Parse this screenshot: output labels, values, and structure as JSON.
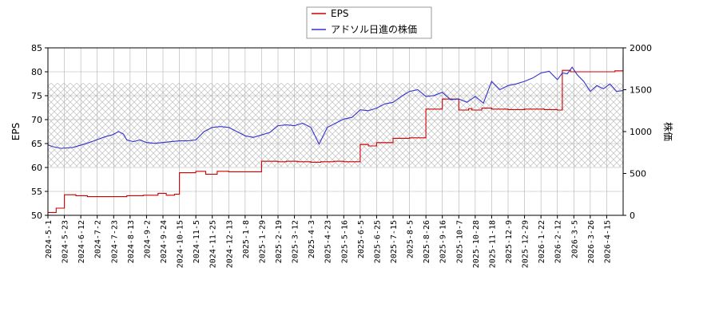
{
  "chart_data": {
    "type": "line",
    "title": "",
    "ylabel_left": "EPS",
    "ylabel_right": "株価",
    "ylim_left": [
      50,
      85
    ],
    "yticks_left": [
      50,
      55,
      60,
      65,
      70,
      75,
      80,
      85
    ],
    "ylim_right": [
      0,
      2000
    ],
    "yticks_right": [
      0,
      500,
      1000,
      1500,
      2000
    ],
    "grid": true,
    "legend_position": "top-center",
    "colors": {
      "eps": "#cc0000",
      "price": "#3333cc",
      "grid": "#b0b0b0",
      "hatch": "#c8c8c8"
    },
    "xtick_labels": [
      "2024-5-1",
      "2024-5-23",
      "2024-6-12",
      "2024-7-2",
      "2024-7-23",
      "2024-8-13",
      "2024-9-2",
      "2024-9-24",
      "2024-10-15",
      "2024-11-5",
      "2024-11-25",
      "2024-12-13",
      "2025-1-8",
      "2025-1-29",
      "2025-2-19",
      "2025-3-12",
      "2025-4-3",
      "2025-4-23",
      "2025-5-16",
      "2025-6-5",
      "2025-6-25",
      "2025-7-15",
      "2025-8-5",
      "2025-8-26",
      "2025-9-16",
      "2025-10-7",
      "2025-10-28",
      "2025-11-18",
      "2025-12-9",
      "2025-12-29",
      "2026-1-22",
      "2026-2-12",
      "2026-3-5",
      "2026-3-26",
      "2026-4-15"
    ],
    "shaded_band_price": [
      580,
      1580
    ],
    "series": [
      {
        "name": "EPS",
        "axis": "left",
        "step": true,
        "x": [
          0,
          0.5,
          1,
          1.7,
          2.4,
          4.8,
          5.8,
          6.7,
          7.2,
          7.7,
          8.0,
          9.0,
          9.6,
          10.3,
          11.0,
          13.0,
          14.0,
          14.5,
          15.2,
          16.0,
          16.6,
          17.4,
          18.0,
          18.1,
          18.3,
          19.0,
          19.5,
          20.0,
          21.0,
          22.0,
          23.0,
          24.0,
          25.0,
          25.6,
          25.8,
          26.4,
          27.0,
          28.0,
          29.0,
          30.2,
          31.0,
          31.3,
          31.8,
          34.5,
          35.0
        ],
        "y": [
          50.6,
          51.5,
          54.3,
          54.1,
          53.9,
          54.1,
          54.2,
          54.6,
          54.2,
          54.4,
          58.9,
          59.2,
          58.6,
          59.2,
          59.1,
          61.3,
          61.2,
          61.3,
          61.2,
          61.1,
          61.2,
          61.3,
          61.2,
          61.2,
          61.2,
          64.8,
          64.5,
          65.2,
          66.1,
          66.2,
          72.2,
          74.3,
          72.0,
          72.3,
          72.0,
          72.4,
          72.2,
          72.1,
          72.2,
          72.1,
          72.0,
          80.3,
          80.0,
          80.2,
          83.3
        ],
        "x_end": 35.0
      },
      {
        "name": "アドソル日進の株価",
        "axis": "right",
        "step": false,
        "x": [
          0,
          0.3,
          0.8,
          1.5,
          2.2,
          2.8,
          3.5,
          3.9,
          4.3,
          4.6,
          4.8,
          5.2,
          5.6,
          6.0,
          6.5,
          7.0,
          7.5,
          8.0,
          8.5,
          9.0,
          9.5,
          10.0,
          10.5,
          11.0,
          11.5,
          12.0,
          12.5,
          13.0,
          13.5,
          14.0,
          14.5,
          15.0,
          15.5,
          16.0,
          16.5,
          17.0,
          17.5,
          18.0,
          18.5,
          19.0,
          19.5,
          20.0,
          20.5,
          21.0,
          21.5,
          22.0,
          22.5,
          23.0,
          23.5,
          24.0,
          24.5,
          25.0,
          25.5,
          26.0,
          26.5,
          27.0,
          27.5,
          28.0,
          28.5,
          29.0,
          29.5,
          30.0,
          30.5,
          31.0,
          31.3,
          31.6,
          31.9,
          32.2,
          32.6,
          33.0,
          33.4,
          33.8,
          34.2,
          34.6,
          35.0
        ],
        "y": [
          840,
          820,
          800,
          810,
          850,
          890,
          940,
          960,
          1000,
          970,
          900,
          880,
          900,
          870,
          860,
          870,
          880,
          890,
          890,
          900,
          1000,
          1050,
          1060,
          1050,
          1000,
          950,
          930,
          960,
          990,
          1070,
          1080,
          1070,
          1100,
          1050,
          850,
          1050,
          1100,
          1150,
          1170,
          1260,
          1250,
          1280,
          1330,
          1350,
          1420,
          1480,
          1500,
          1420,
          1430,
          1470,
          1380,
          1390,
          1350,
          1420,
          1340,
          1600,
          1500,
          1550,
          1570,
          1600,
          1640,
          1700,
          1720,
          1620,
          1700,
          1690,
          1770,
          1680,
          1600,
          1480,
          1550,
          1510,
          1570,
          1480,
          1490
        ]
      }
    ]
  },
  "legend": {
    "items": [
      {
        "label": "EPS",
        "color": "#cc0000"
      },
      {
        "label": "アドソル日進の株価",
        "color": "#3333cc"
      }
    ]
  }
}
